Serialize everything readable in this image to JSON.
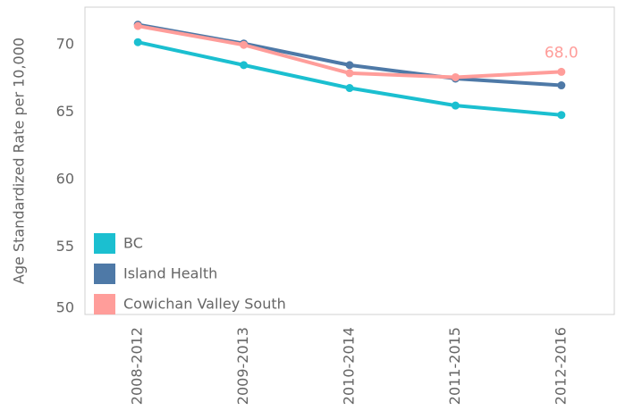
{
  "chart_data": {
    "type": "line",
    "y_label": "Age Standardized Rate per 10,000",
    "categories": [
      "2008-2012",
      "2009-2013",
      "2010-2014",
      "2011-2015",
      "2012-2016"
    ],
    "series": [
      {
        "name": "BC",
        "color": "#1bbfd0",
        "values": [
          70.2,
          68.5,
          66.8,
          65.5,
          64.8
        ]
      },
      {
        "name": "Island Health",
        "color": "#4e79a7",
        "values": [
          71.5,
          70.1,
          68.5,
          67.5,
          67.0
        ]
      },
      {
        "name": "Cowichan Valley South",
        "color": "#ff9d9a",
        "values": [
          71.4,
          70.0,
          67.9,
          67.6,
          68.0
        ],
        "value_labels": [
          null,
          null,
          null,
          null,
          "68.0"
        ]
      }
    ],
    "ylim": [
      50,
      72.8
    ],
    "yticks": [
      50,
      55,
      60,
      65,
      70
    ],
    "grid": false,
    "legend": "lower left"
  }
}
